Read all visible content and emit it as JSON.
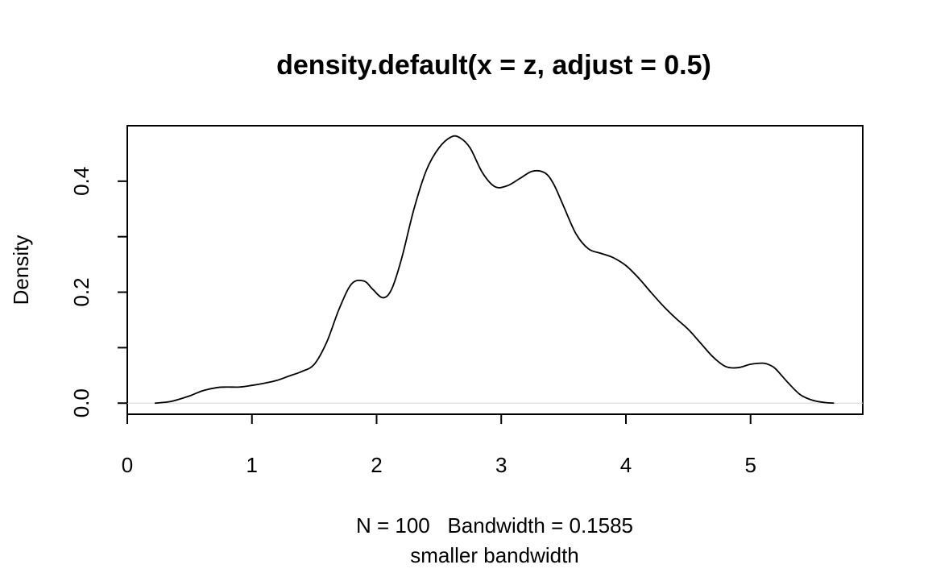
{
  "chart_data": {
    "type": "line",
    "title": "density.default(x = z, adjust = 0.5)",
    "xlabel": "N = 100   Bandwidth = 0.1585",
    "sublabel": "smaller bandwidth",
    "ylabel": "Density",
    "xlim": [
      0,
      5.9
    ],
    "ylim": [
      -0.02,
      0.5
    ],
    "x_ticks": [
      0,
      1,
      2,
      3,
      4,
      5
    ],
    "x_tick_labels": [
      "0",
      "1",
      "2",
      "3",
      "4",
      "5"
    ],
    "y_ticks": [
      0.0,
      0.1,
      0.2,
      0.3,
      0.4
    ],
    "y_tick_labels": [
      "0.0",
      "",
      "0.2",
      "",
      "0.4"
    ],
    "baseline": 0,
    "grid": false,
    "series": [
      {
        "x": [
          0.22,
          0.35,
          0.5,
          0.6,
          0.72,
          0.8,
          0.9,
          1.0,
          1.1,
          1.2,
          1.3,
          1.4,
          1.5,
          1.6,
          1.7,
          1.8,
          1.9,
          1.97,
          2.05,
          2.12,
          2.2,
          2.3,
          2.4,
          2.5,
          2.6,
          2.67,
          2.75,
          2.85,
          2.95,
          3.05,
          3.15,
          3.25,
          3.35,
          3.42,
          3.5,
          3.6,
          3.7,
          3.8,
          3.9,
          4.0,
          4.1,
          4.2,
          4.3,
          4.4,
          4.5,
          4.6,
          4.7,
          4.8,
          4.9,
          5.0,
          5.1,
          5.15,
          5.2,
          5.3,
          5.4,
          5.5,
          5.6,
          5.67
        ],
        "y": [
          0.0,
          0.003,
          0.013,
          0.022,
          0.028,
          0.029,
          0.029,
          0.032,
          0.036,
          0.041,
          0.049,
          0.057,
          0.07,
          0.11,
          0.17,
          0.215,
          0.22,
          0.205,
          0.19,
          0.205,
          0.26,
          0.35,
          0.42,
          0.46,
          0.48,
          0.478,
          0.46,
          0.415,
          0.39,
          0.392,
          0.405,
          0.418,
          0.415,
          0.395,
          0.355,
          0.305,
          0.278,
          0.27,
          0.262,
          0.248,
          0.226,
          0.2,
          0.175,
          0.153,
          0.133,
          0.108,
          0.083,
          0.066,
          0.064,
          0.07,
          0.072,
          0.069,
          0.062,
          0.037,
          0.015,
          0.005,
          0.001,
          0.0
        ]
      }
    ]
  }
}
